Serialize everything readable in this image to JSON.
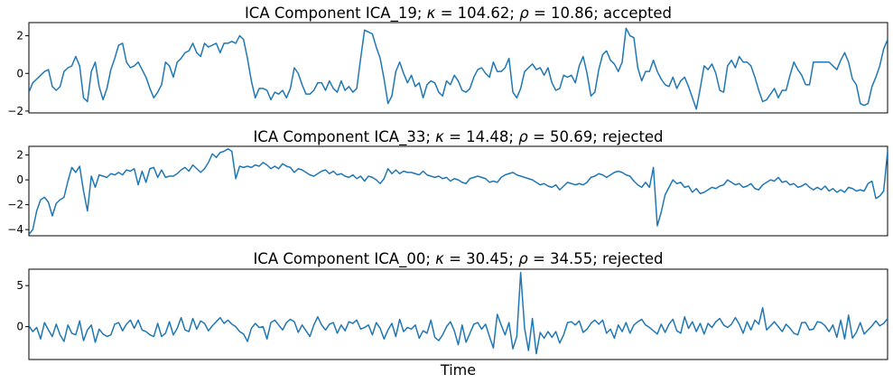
{
  "chart_data": [
    {
      "type": "line",
      "title_text": "ICA Component ICA_19; κ = 104.62; ρ = 10.86; accepted",
      "title_parts": [
        "ICA Component ICA_19; ",
        "κ",
        " = 104.62; ",
        "ρ",
        " = 10.86; accepted"
      ],
      "xlabel": "",
      "ylabel": "",
      "xlim": [
        0,
        220
      ],
      "ylim": [
        -2.1,
        2.7
      ],
      "yticks": [
        -2,
        0,
        2
      ],
      "ytick_labels": [
        "−2",
        "0",
        "2"
      ],
      "grid": false,
      "color": "#1f77b4",
      "x_start": 0,
      "x_step": 1,
      "values": [
        -1.0,
        -0.5,
        -0.3,
        -0.1,
        0.1,
        0.2,
        -0.7,
        -0.9,
        -0.7,
        0.1,
        0.3,
        0.4,
        0.9,
        0.4,
        -1.3,
        -1.5,
        0.1,
        0.6,
        -0.7,
        -1.4,
        -0.8,
        0.2,
        0.8,
        1.5,
        1.6,
        0.6,
        0.3,
        0.4,
        0.6,
        0.2,
        -0.2,
        -0.8,
        -1.3,
        -1.0,
        -0.6,
        0.6,
        0.4,
        -0.2,
        0.6,
        0.8,
        1.1,
        1.2,
        1.6,
        1.1,
        0.9,
        1.6,
        1.4,
        1.5,
        1.6,
        1.1,
        1.6,
        1.6,
        1.7,
        1.6,
        2.0,
        1.8,
        0.8,
        -0.4,
        -1.3,
        -0.8,
        -0.8,
        -0.9,
        -1.4,
        -1.0,
        -1.1,
        -0.9,
        -1.3,
        -0.8,
        0.3,
        0.0,
        -0.6,
        -1.1,
        -1.1,
        -0.9,
        -0.5,
        -0.5,
        -0.9,
        -0.4,
        -0.8,
        -1.0,
        -0.4,
        -0.9,
        -0.7,
        -1.0,
        -0.8,
        0.8,
        2.3,
        2.2,
        2.1,
        1.4,
        0.8,
        -0.3,
        -1.6,
        -1.2,
        0.1,
        0.6,
        0.0,
        -0.5,
        -0.1,
        -0.7,
        -0.5,
        -1.3,
        -0.6,
        -0.4,
        -0.5,
        -1.0,
        -1.2,
        -0.4,
        -0.6,
        -0.1,
        -0.4,
        -0.9,
        -1.0,
        -0.8,
        -0.2,
        0.2,
        0.3,
        0.0,
        -0.2,
        0.6,
        0.1,
        0.1,
        0.3,
        0.8,
        -1.0,
        -1.3,
        -0.8,
        0.1,
        0.3,
        0.5,
        0.2,
        0.3,
        -0.1,
        0.3,
        -0.5,
        -0.9,
        -0.8,
        -0.1,
        -0.2,
        -0.1,
        -0.5,
        0.4,
        0.9,
        0.0,
        -1.2,
        -1.0,
        0.2,
        1.0,
        1.2,
        0.7,
        0.5,
        0.1,
        0.6,
        2.4,
        2.0,
        1.9,
        0.3,
        -0.4,
        0.1,
        0.1,
        0.7,
        0.1,
        -0.3,
        -0.6,
        -0.7,
        -0.2,
        -0.8,
        -0.4,
        -0.2,
        -0.7,
        -1.3,
        -1.9,
        -0.8,
        0.4,
        0.2,
        0.5,
        0.0,
        -0.9,
        -1.0,
        0.4,
        0.7,
        0.3,
        0.9,
        0.6,
        0.6,
        0.4,
        -0.2,
        -0.9,
        -1.5,
        -1.4,
        -1.1,
        -0.8,
        -1.3,
        -0.9,
        -0.9,
        -0.1,
        0.6,
        0.2,
        -0.1,
        -0.6,
        -0.6,
        0.6,
        0.6,
        0.6,
        0.6,
        0.6,
        0.4,
        0.2,
        0.7,
        1.1,
        0.6,
        -0.3,
        -0.6,
        -1.6,
        -1.7,
        -1.6,
        -0.7,
        -0.2,
        0.4,
        1.3,
        1.8
      ]
    },
    {
      "type": "line",
      "title_text": "ICA Component ICA_33; κ = 14.48; ρ = 50.69; rejected",
      "title_parts": [
        "ICA Component ICA_33; ",
        "κ",
        " = 14.48; ",
        "ρ",
        " = 50.69; rejected"
      ],
      "xlabel": "",
      "ylabel": "",
      "xlim": [
        0,
        220
      ],
      "ylim": [
        -4.5,
        2.7
      ],
      "yticks": [
        -4,
        -2,
        0,
        2
      ],
      "ytick_labels": [
        "−4",
        "−2",
        "0",
        "2"
      ],
      "grid": false,
      "color": "#1f77b4",
      "x_start": 0,
      "x_step": 1,
      "values": [
        -4.4,
        -4.0,
        -2.5,
        -1.6,
        -1.4,
        -1.8,
        -2.9,
        -1.9,
        -1.6,
        -1.4,
        -0.1,
        1.0,
        0.6,
        1.1,
        -0.9,
        -2.5,
        0.3,
        -0.6,
        0.4,
        0.3,
        0.2,
        0.5,
        0.4,
        0.6,
        0.4,
        0.8,
        0.7,
        0.9,
        -0.4,
        0.7,
        -0.2,
        0.9,
        1.0,
        0.2,
        0.8,
        0.2,
        0.3,
        0.3,
        0.5,
        0.8,
        1.0,
        0.7,
        1.2,
        0.9,
        0.6,
        0.9,
        1.4,
        2.1,
        1.8,
        2.2,
        2.3,
        2.5,
        2.3,
        0.1,
        1.1,
        1.0,
        1.1,
        1.0,
        1.2,
        1.1,
        1.4,
        1.2,
        0.9,
        1.1,
        0.9,
        1.3,
        1.1,
        1.0,
        0.6,
        0.9,
        0.8,
        0.6,
        0.4,
        0.3,
        0.5,
        0.7,
        0.8,
        0.5,
        0.7,
        0.4,
        0.5,
        0.3,
        0.2,
        0.4,
        0.1,
        0.3,
        -0.1,
        0.3,
        0.2,
        0.0,
        -0.3,
        0.1,
        0.9,
        0.5,
        0.8,
        0.5,
        0.7,
        0.6,
        0.6,
        0.5,
        0.4,
        0.7,
        0.4,
        0.3,
        0.2,
        0.3,
        0.1,
        0.2,
        -0.1,
        0.1,
        0.0,
        -0.2,
        -0.3,
        0.1,
        0.2,
        0.3,
        0.2,
        0.1,
        -0.2,
        -0.1,
        -0.2,
        0.2,
        0.4,
        0.5,
        0.6,
        0.4,
        0.3,
        0.2,
        0.1,
        0.0,
        -0.2,
        -0.4,
        -0.3,
        -0.5,
        -0.6,
        -0.4,
        -0.8,
        -0.5,
        -0.2,
        -0.3,
        -0.4,
        -0.3,
        -0.4,
        -0.2,
        0.2,
        0.3,
        0.5,
        0.4,
        0.2,
        0.4,
        0.6,
        0.7,
        0.6,
        0.4,
        0.3,
        -0.1,
        -0.4,
        -0.6,
        -0.2,
        -0.6,
        1.0,
        -3.7,
        -2.6,
        -1.2,
        -0.6,
        0.0,
        -0.3,
        -0.2,
        -0.6,
        -0.5,
        -1.0,
        -0.7,
        -1.1,
        -1.0,
        -0.8,
        -0.6,
        -0.7,
        -0.5,
        -0.4,
        0.0,
        -0.2,
        -0.4,
        -0.3,
        -0.6,
        -0.5,
        -0.3,
        -0.7,
        -0.8,
        -0.4,
        -0.2,
        0.0,
        -0.1,
        0.2,
        -0.2,
        -0.1,
        -0.4,
        -0.3,
        -0.6,
        -0.5,
        -0.3,
        -0.6,
        -0.8,
        -0.6,
        -0.8,
        -0.5,
        -0.9,
        -0.7,
        -1.0,
        -0.8,
        -1.0,
        -0.6,
        -0.7,
        -0.9,
        -0.8,
        -0.9,
        -0.3,
        -0.1,
        -1.5,
        -1.3,
        -0.9,
        2.3,
        2.2,
        1.6,
        1.9,
        1.5,
        1.6,
        0.7,
        -1.7
      ]
    },
    {
      "type": "line",
      "title_text": "ICA Component ICA_00; κ = 30.45; ρ = 34.55; rejected",
      "title_parts": [
        "ICA Component ICA_00; ",
        "κ",
        " = 30.45; ",
        "ρ",
        " = 34.55; rejected"
      ],
      "xlabel": "Time",
      "ylabel": "",
      "xlim": [
        0,
        220
      ],
      "ylim": [
        -4.0,
        7.0
      ],
      "yticks": [
        0,
        5
      ],
      "ytick_labels": [
        "0",
        "5"
      ],
      "grid": false,
      "color": "#1f77b4",
      "x_start": 0,
      "x_step": 1,
      "values": [
        0.1,
        -0.6,
        -0.1,
        -1.5,
        0.5,
        -0.4,
        -1.2,
        0.3,
        -1.0,
        -1.8,
        0.2,
        -0.8,
        -1.0,
        0.7,
        -1.7,
        -0.4,
        0.2,
        -1.9,
        -0.3,
        -0.9,
        -1.2,
        -1.0,
        0.3,
        0.5,
        -0.5,
        0.3,
        0.8,
        -0.2,
        0.8,
        -0.4,
        -0.6,
        -1.0,
        -1.2,
        0.4,
        -1.2,
        -0.8,
        0.6,
        -1.0,
        -0.2,
        1.1,
        -0.4,
        -0.6,
        1.0,
        -0.3,
        0.7,
        0.4,
        -0.5,
        0.1,
        0.6,
        1.1,
        0.4,
        0.8,
        0.3,
        0.0,
        -0.6,
        -0.9,
        -1.8,
        -0.2,
        0.4,
        -0.1,
        0.0,
        -1.5,
        0.5,
        0.8,
        0.2,
        -0.4,
        0.5,
        0.9,
        0.6,
        -0.7,
        0.2,
        -0.5,
        -1.2,
        0.2,
        1.2,
        0.2,
        -0.4,
        0.3,
        0.5,
        -0.8,
        0.2,
        -0.5,
        0.6,
        0.4,
        0.8,
        -0.3,
        -0.1,
        0.2,
        -1.0,
        0.5,
        -0.2,
        -1.5,
        -0.4,
        0.4,
        -1.2,
        0.9,
        -0.6,
        -0.1,
        -0.3,
        0.2,
        -1.4,
        -0.5,
        -0.8,
        0.8,
        -1.3,
        -1.7,
        -1.0,
        0.0,
        0.6,
        -0.5,
        -2.2,
        0.2,
        -1.9,
        -0.8,
        0.3,
        0.5,
        -0.3,
        0.3,
        -1.2,
        -2.6,
        1.5,
        0.2,
        -1.0,
        0.5,
        -2.7,
        -1.2,
        6.6,
        -0.2,
        -2.9,
        1.0,
        -3.3,
        -0.7,
        -1.4,
        -0.6,
        -1.3,
        -0.6,
        -2.0,
        -1.0,
        0.5,
        0.6,
        0.2,
        0.7,
        -0.7,
        -0.3,
        0.4,
        0.8,
        0.3,
        0.8,
        -0.8,
        -0.3,
        -1.4,
        0.2,
        -0.6,
        0.5,
        -0.8,
        0.2,
        0.6,
        0.9,
        0.2,
        -0.1,
        -0.5,
        -0.9,
        0.3,
        -0.7,
        0.3,
        0.9,
        -0.5,
        -0.8,
        1.2,
        -0.2,
        0.6,
        -0.6,
        0.4,
        -0.9,
        0.4,
        -0.1,
        0.6,
        1.0,
        0.2,
        -0.1,
        0.3,
        1.1,
        0.3,
        -0.8,
        0.6,
        -0.4,
        0.8,
        0.3,
        2.3,
        -0.4,
        0.1,
        0.6,
        0.0,
        -0.6,
        0.3,
        -0.2,
        -0.8,
        -1.0,
        0.5,
        0.5,
        -0.4,
        -0.3,
        0.6,
        0.5,
        0.1,
        -0.6,
        0.2,
        -1.3,
        0.8,
        -1.5,
        1.4,
        -1.4,
        -0.7,
        0.5,
        -0.9,
        -0.4,
        0.1,
        0.7,
        0.1,
        0.4,
        1.0,
        0.2,
        -0.3,
        0.0,
        -0.3,
        0.5
      ]
    }
  ]
}
